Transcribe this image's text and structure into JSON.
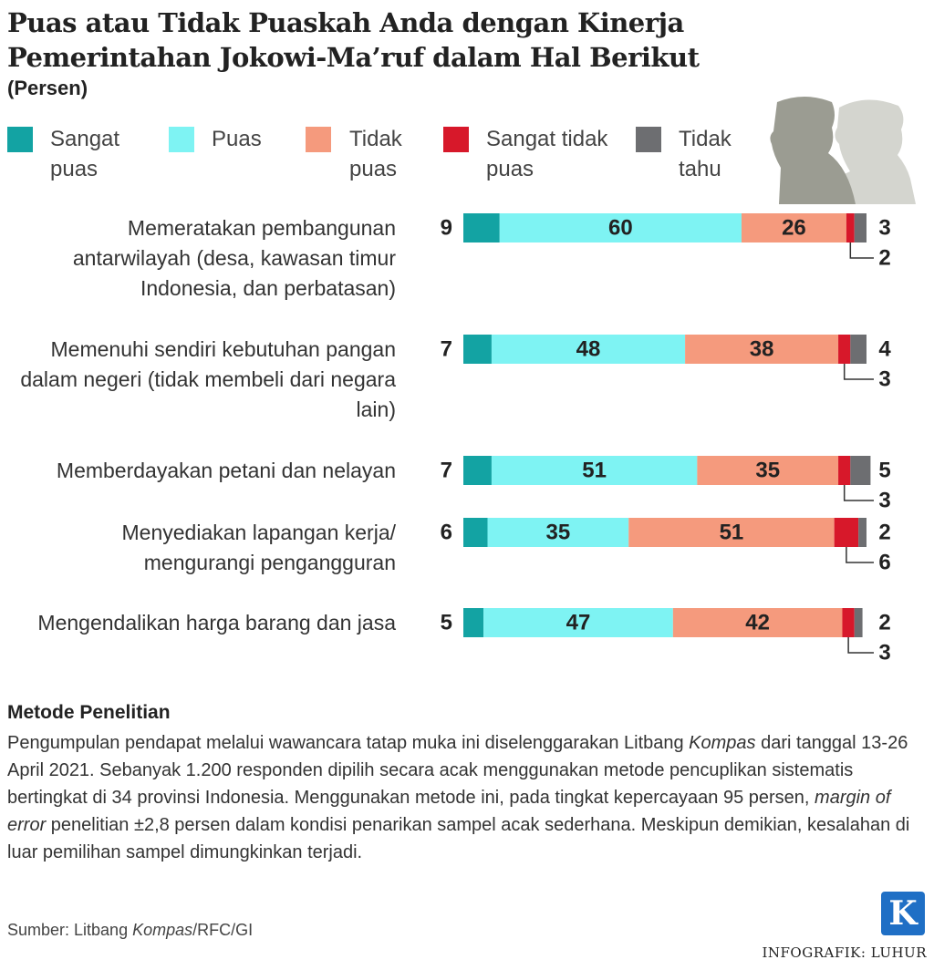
{
  "chart_data": {
    "type": "stacked-bar-horizontal",
    "title": "Puas atau Tidak Puaskah Anda dengan Kinerja Pemerintahan Jokowi-Ma’ruf dalam Hal Berikut",
    "subtitle": "(Persen)",
    "categories": [
      "Memeratakan pembangunan antarwilayah (desa, kawasan timur Indonesia, dan perbatasan)",
      "Memenuhi sendiri kebutuhan pangan dalam negeri (tidak membeli dari negara lain)",
      "Memberdayakan petani dan nelayan",
      "Menyediakan lapangan kerja/ mengurangi pengangguran",
      "Mengendalikan harga barang dan jasa"
    ],
    "series": [
      {
        "name": "Sangat puas",
        "color": "#13a3a3",
        "values": [
          9,
          7,
          7,
          6,
          5
        ]
      },
      {
        "name": "Puas",
        "color": "#7ef3f3",
        "values": [
          60,
          48,
          51,
          35,
          47
        ]
      },
      {
        "name": "Tidak puas",
        "color": "#f59a7d",
        "values": [
          26,
          38,
          35,
          51,
          42
        ]
      },
      {
        "name": "Sangat tidak puas",
        "color": "#d7182a",
        "values": [
          2,
          3,
          3,
          6,
          3
        ]
      },
      {
        "name": "Tidak tahu",
        "color": "#6d6e71",
        "values": [
          3,
          4,
          5,
          2,
          2
        ]
      }
    ],
    "methodology": {
      "heading": "Metode Penelitian",
      "segments": [
        {
          "text": "Pengumpulan pendapat melalui wawancara tatap muka ini diselenggarakan Litbang "
        },
        {
          "text": "Kompas",
          "italic": true
        },
        {
          "text": " dari tanggal 13-26 April 2021. Sebanyak 1.200 responden dipilih secara acak menggunakan metode pencuplikan sistematis bertingkat di 34 provinsi Indonesia. Menggunakan metode ini, pada tingkat kepercayaan 95 persen, "
        },
        {
          "text": "margin of error",
          "italic": true
        },
        {
          "text": " penelitian ±2,8 persen dalam kondisi penarikan sampel acak sederhana. Meskipun demikian, kesalahan di luar pemilihan sampel dimungkinkan terjadi."
        }
      ]
    },
    "source": [
      {
        "text": "Sumber: Litbang "
      },
      {
        "text": "Kompas",
        "italic": true
      },
      {
        "text": "/RFC/GI"
      }
    ],
    "logo": "K",
    "credit": "INFOGRAFIK: LUHUR"
  }
}
